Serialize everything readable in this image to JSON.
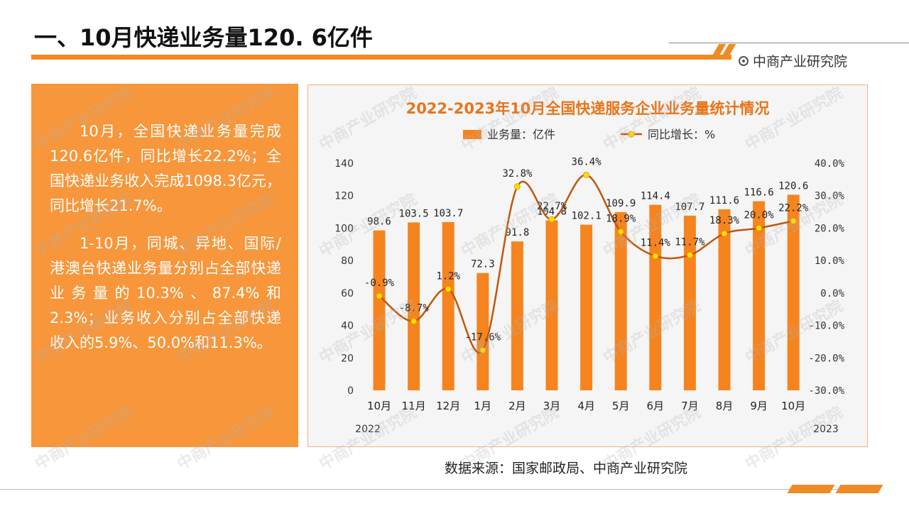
{
  "page_title": "一、10月快递业务量120. 6亿件",
  "brand": "中商产业研究院",
  "text_paragraphs": [
    "10月，全国快递业务量完成120.6亿件，同比增长22.2%；全国快递业务收入完成1098.3亿元，同比增长21.7%。",
    "1-10月，同城、异地、国际/港澳台快递业务量分别占全部快递业务量的10.3%、87.4%和2.3%；业务收入分别占全部快递收入的5.9%、50.0%和11.3%。"
  ],
  "source": "数据来源：国家邮政局、中商产业研究院",
  "watermark": "中商产业研究院",
  "colors": {
    "accent": "#f08a24",
    "bar": "#f5841f",
    "line": "#c0560b",
    "marker": "#ffe000",
    "panel": "#f7963a"
  },
  "chart_data": {
    "type": "bar",
    "title": "2022-2023年10月全国快递服务企业业务量统计情况",
    "categories": [
      "10月",
      "11月",
      "12月",
      "1月",
      "2月",
      "3月",
      "4月",
      "5月",
      "6月",
      "7月",
      "8月",
      "9月",
      "10月"
    ],
    "year_labels": {
      "start": "2022",
      "end": "2023"
    },
    "series": [
      {
        "name": "业务量：亿件",
        "type": "bar",
        "axis": "left",
        "values": [
          98.6,
          103.5,
          103.7,
          72.3,
          91.8,
          104.8,
          102.1,
          109.9,
          114.4,
          107.7,
          111.6,
          116.6,
          120.6
        ],
        "labels": [
          "98.6",
          "103.5",
          "103.7",
          "72.3",
          "91.8",
          "104.8",
          "102.1",
          "109.9",
          "114.4",
          "107.7",
          "111.6",
          "116.6",
          "120.6"
        ]
      },
      {
        "name": "同比增长：%",
        "type": "line",
        "axis": "right",
        "values": [
          -0.9,
          -8.7,
          1.2,
          -17.6,
          32.8,
          22.7,
          36.4,
          18.9,
          11.4,
          11.7,
          18.3,
          20.0,
          22.2
        ],
        "labels": [
          "-0.9%",
          "-8.7%",
          "1.2%",
          "-17.6%",
          "32.8%",
          "22.7%",
          "36.4%",
          "18.9%",
          "11.4%",
          "11.7%",
          "18.3%",
          "20.0%",
          "22.2%"
        ]
      }
    ],
    "y_left": {
      "min": 0,
      "max": 140,
      "ticks": [
        "0",
        "20",
        "40",
        "60",
        "80",
        "100",
        "120",
        "140"
      ]
    },
    "y_right": {
      "min": -30,
      "max": 40,
      "ticks": [
        "-30.0%",
        "-20.0%",
        "-10.0%",
        "0.0%",
        "10.0%",
        "20.0%",
        "30.0%",
        "40.0%"
      ]
    },
    "legend": "top",
    "grid": false
  }
}
